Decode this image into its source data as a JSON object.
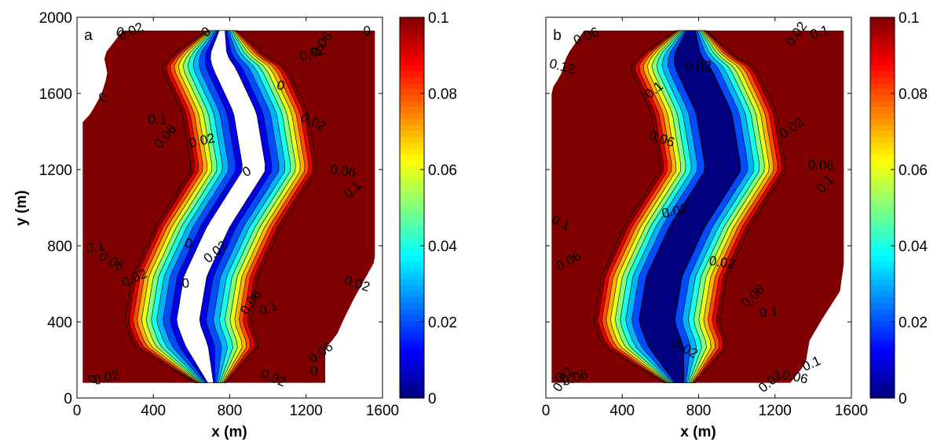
{
  "chart_data": [
    {
      "type": "heatmap",
      "subtype": "filled-contour",
      "panel_letter": "a",
      "xlabel": "x (m)",
      "ylabel": "y (m)",
      "xlim": [
        0,
        1600
      ],
      "ylim": [
        0,
        2000
      ],
      "xticks": [
        "0",
        "400",
        "800",
        "1200",
        "1600"
      ],
      "yticks": [
        "0",
        "400",
        "800",
        "1200",
        "1600",
        "2000"
      ],
      "colorbar": {
        "colormap": "jet",
        "range": [
          0,
          0.1
        ],
        "ticks": [
          "0",
          "0.02",
          "0.04",
          "0.06",
          "0.08",
          "0.1"
        ]
      },
      "contour_levels": [
        0,
        0.01,
        0.02,
        0.03,
        0.04,
        0.05,
        0.06,
        0.07,
        0.08,
        0.09,
        0.1
      ],
      "dry_region_visible": true,
      "channel_centerline": [
        {
          "y": 80,
          "x": 700
        },
        {
          "y": 400,
          "x": 580
        },
        {
          "y": 640,
          "x": 620
        },
        {
          "y": 900,
          "x": 740
        },
        {
          "y": 1200,
          "x": 930
        },
        {
          "y": 1500,
          "x": 880
        },
        {
          "y": 1800,
          "x": 740
        },
        {
          "y": 1930,
          "x": 760
        }
      ],
      "left_boundary": [
        {
          "y": 80,
          "x": 30
        },
        {
          "y": 1460,
          "x": 30
        },
        {
          "y": 1490,
          "x": 70
        },
        {
          "y": 1600,
          "x": 130
        },
        {
          "y": 1700,
          "x": 160
        },
        {
          "y": 1800,
          "x": 140
        },
        {
          "y": 1930,
          "x": 240
        }
      ],
      "right_boundary": [
        {
          "y": 80,
          "x": 1300
        },
        {
          "y": 260,
          "x": 1300
        },
        {
          "y": 330,
          "x": 1360
        },
        {
          "y": 420,
          "x": 1400
        },
        {
          "y": 540,
          "x": 1460
        },
        {
          "y": 720,
          "x": 1560
        },
        {
          "y": 1930,
          "x": 1560
        }
      ],
      "contour_labels": [
        {
          "text": "a",
          "x": 60,
          "y": 1880
        },
        {
          "text": "0.02",
          "x": 290,
          "y": 1905
        },
        {
          "text": "0",
          "x": 220,
          "y": 1900
        },
        {
          "text": "0",
          "x": 690,
          "y": 1905
        },
        {
          "text": "0",
          "x": 1520,
          "y": 1905
        },
        {
          "text": "0.06",
          "x": 1300,
          "y": 1845
        },
        {
          "text": "0.02",
          "x": 1240,
          "y": 1790
        },
        {
          "text": "0",
          "x": 1060,
          "y": 1620
        },
        {
          "text": "0",
          "x": 150,
          "y": 1560
        },
        {
          "text": "0.1",
          "x": 420,
          "y": 1440
        },
        {
          "text": "0.06",
          "x": 480,
          "y": 1360
        },
        {
          "text": "0.02",
          "x": 660,
          "y": 1330
        },
        {
          "text": "0.02",
          "x": 1230,
          "y": 1430
        },
        {
          "text": "0",
          "x": 900,
          "y": 1170
        },
        {
          "text": "0.06",
          "x": 1390,
          "y": 1170
        },
        {
          "text": "0.1",
          "x": 1460,
          "y": 1080
        },
        {
          "text": "0.1",
          "x": 100,
          "y": 770
        },
        {
          "text": "0.06",
          "x": 170,
          "y": 700
        },
        {
          "text": "0.02",
          "x": 310,
          "y": 610
        },
        {
          "text": "0",
          "x": 580,
          "y": 790
        },
        {
          "text": "0.02",
          "x": 740,
          "y": 750
        },
        {
          "text": "0",
          "x": 570,
          "y": 580
        },
        {
          "text": "0.06",
          "x": 930,
          "y": 490
        },
        {
          "text": "0.1",
          "x": 1010,
          "y": 450
        },
        {
          "text": "0.02",
          "x": 1460,
          "y": 580
        },
        {
          "text": "0.06",
          "x": 1290,
          "y": 220
        },
        {
          "text": "0",
          "x": 1240,
          "y": 120
        },
        {
          "text": "0",
          "x": 100,
          "y": 85
        },
        {
          "text": "0.02",
          "x": 160,
          "y": 85
        },
        {
          "text": "0.02",
          "x": 1020,
          "y": 85
        }
      ]
    },
    {
      "type": "heatmap",
      "subtype": "filled-contour",
      "panel_letter": "b",
      "xlabel": "x (m)",
      "ylabel": "",
      "xlim": [
        0,
        1600
      ],
      "ylim": [
        0,
        2000
      ],
      "xticks": [
        "0",
        "400",
        "800",
        "1200",
        "1600"
      ],
      "yticks": [],
      "colorbar": {
        "colormap": "jet",
        "range": [
          0,
          0.1
        ],
        "ticks": [
          "0",
          "0.02",
          "0.04",
          "0.06",
          "0.08",
          "0.1"
        ]
      },
      "contour_levels": [
        0,
        0.01,
        0.02,
        0.03,
        0.04,
        0.05,
        0.06,
        0.07,
        0.08,
        0.09,
        0.1
      ],
      "dry_region_visible": false,
      "channel_centerline": [
        {
          "y": 80,
          "x": 700
        },
        {
          "y": 400,
          "x": 580
        },
        {
          "y": 640,
          "x": 620
        },
        {
          "y": 900,
          "x": 740
        },
        {
          "y": 1200,
          "x": 930
        },
        {
          "y": 1500,
          "x": 880
        },
        {
          "y": 1800,
          "x": 740
        },
        {
          "y": 1930,
          "x": 760
        }
      ],
      "left_boundary": [
        {
          "y": 80,
          "x": 30
        },
        {
          "y": 1620,
          "x": 30
        },
        {
          "y": 1700,
          "x": 80
        },
        {
          "y": 1800,
          "x": 110
        },
        {
          "y": 1930,
          "x": 200
        }
      ],
      "right_boundary": [
        {
          "y": 80,
          "x": 1280
        },
        {
          "y": 180,
          "x": 1360
        },
        {
          "y": 300,
          "x": 1380
        },
        {
          "y": 420,
          "x": 1450
        },
        {
          "y": 560,
          "x": 1540
        },
        {
          "y": 700,
          "x": 1560
        },
        {
          "y": 1930,
          "x": 1560
        }
      ],
      "contour_labels": [
        {
          "text": "b",
          "x": 60,
          "y": 1880
        },
        {
          "text": "0.06",
          "x": 220,
          "y": 1880
        },
        {
          "text": "0.12",
          "x": 80,
          "y": 1720
        },
        {
          "text": "0.1",
          "x": 580,
          "y": 1600
        },
        {
          "text": "0.02",
          "x": 800,
          "y": 1720
        },
        {
          "text": "0.02",
          "x": 1330,
          "y": 1900
        },
        {
          "text": "0.1",
          "x": 1440,
          "y": 1900
        },
        {
          "text": "0.06",
          "x": 600,
          "y": 1340
        },
        {
          "text": "0.02",
          "x": 1300,
          "y": 1400
        },
        {
          "text": "0.06",
          "x": 1440,
          "y": 1200
        },
        {
          "text": "0.1",
          "x": 1480,
          "y": 1110
        },
        {
          "text": "0.02",
          "x": 680,
          "y": 960
        },
        {
          "text": "0.1",
          "x": 70,
          "y": 900
        },
        {
          "text": "0.06",
          "x": 130,
          "y": 700
        },
        {
          "text": "0.02",
          "x": 920,
          "y": 690
        },
        {
          "text": "0.06",
          "x": 1100,
          "y": 520
        },
        {
          "text": "0.1",
          "x": 1170,
          "y": 430
        },
        {
          "text": "0.02",
          "x": 720,
          "y": 240
        },
        {
          "text": "0.1",
          "x": 1400,
          "y": 160
        },
        {
          "text": "0.06",
          "x": 1300,
          "y": 90
        },
        {
          "text": "0.02",
          "x": 1190,
          "y": 70
        },
        {
          "text": "0",
          "x": 70,
          "y": 85
        },
        {
          "text": "0.02",
          "x": 110,
          "y": 85
        },
        {
          "text": "0.06",
          "x": 160,
          "y": 85
        }
      ]
    }
  ]
}
